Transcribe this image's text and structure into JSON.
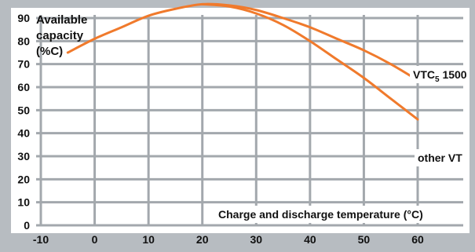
{
  "chart_data": {
    "type": "line",
    "title": "",
    "ylabel_lines": [
      "Available",
      "capacity",
      "(%C)"
    ],
    "xlabel": "Charge and discharge temperature (°C)",
    "xlim": [
      -10,
      60
    ],
    "ylim": [
      0,
      90
    ],
    "x_ticks": [
      -10,
      0,
      10,
      20,
      30,
      40,
      50,
      60
    ],
    "y_ticks": [
      0,
      10,
      20,
      30,
      40,
      50,
      60,
      70,
      80,
      90
    ],
    "grid": true,
    "line_color": "#f07a2c",
    "series": [
      {
        "label_main": "VTC",
        "label_sub": "5",
        "label_rest": " 1500",
        "x": [
          -5,
          0,
          5,
          10,
          15,
          20,
          25,
          30,
          35,
          40,
          45,
          50,
          55,
          60
        ],
        "y": [
          75,
          81,
          86,
          91,
          94,
          96,
          95.5,
          93.5,
          90,
          86,
          81,
          76,
          70,
          63
        ]
      },
      {
        "label_main": "other VT",
        "label_sub": "",
        "label_rest": "",
        "x": [
          20,
          25,
          30,
          35,
          40,
          45,
          50,
          55,
          60
        ],
        "y": [
          96,
          95,
          92,
          87,
          80,
          72,
          64,
          55,
          46
        ]
      }
    ]
  }
}
